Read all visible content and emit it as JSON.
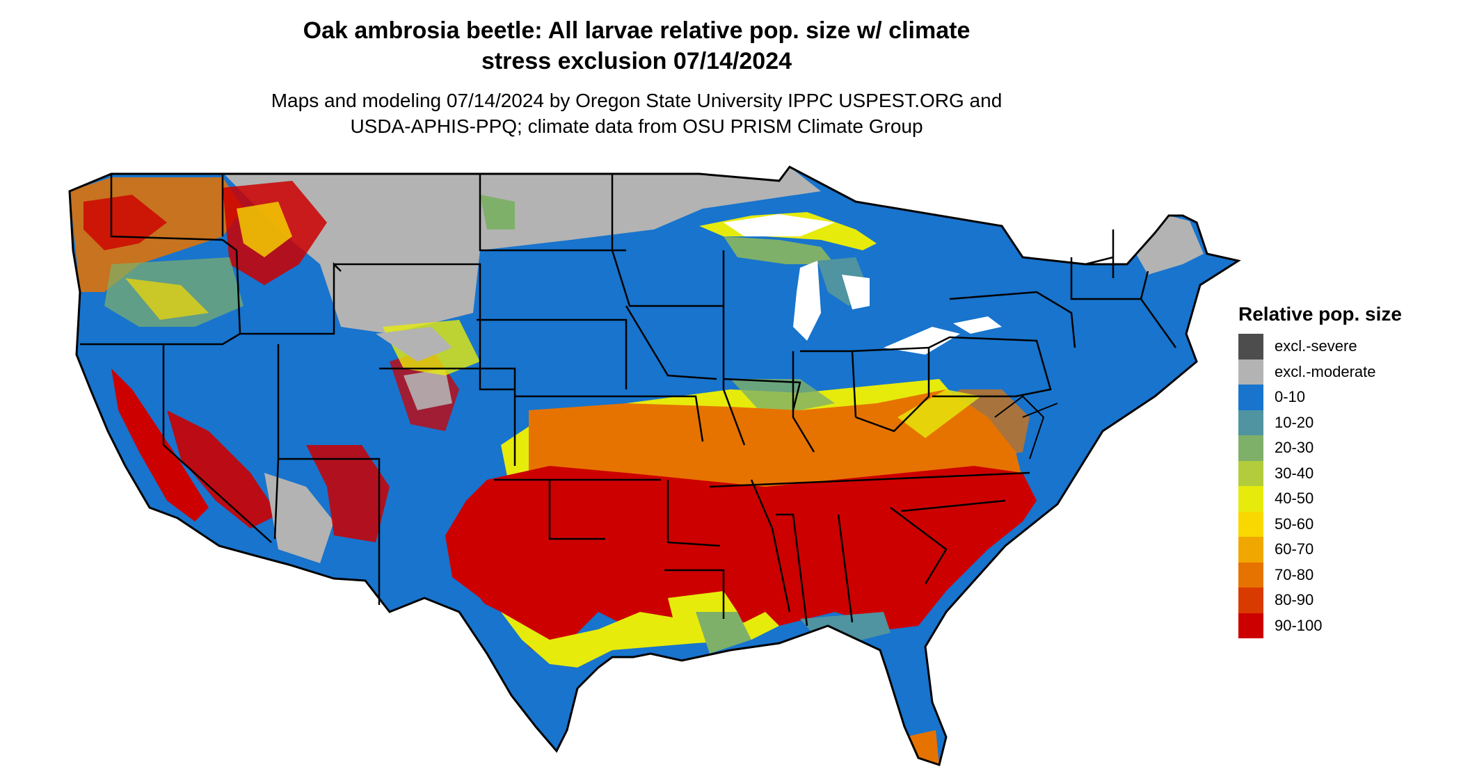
{
  "title": {
    "line1": "Oak ambrosia beetle: All larvae relative pop. size w/ climate",
    "line2": "stress exclusion 07/14/2024"
  },
  "subtitle": {
    "line1": "Maps and modeling 07/14/2024 by Oregon State University IPPC USPEST.ORG and",
    "line2": "USDA-APHIS-PPQ; climate data from OSU PRISM Climate Group"
  },
  "legend": {
    "title": "Relative pop. size",
    "items": [
      {
        "label": "excl.-severe",
        "color": "#4d4d4d"
      },
      {
        "label": "excl.-moderate",
        "color": "#b3b3b3"
      },
      {
        "label": "0-10",
        "color": "#1874cd"
      },
      {
        "label": "10-20",
        "color": "#4f94a0"
      },
      {
        "label": "20-30",
        "color": "#7fb069"
      },
      {
        "label": "30-40",
        "color": "#b2cc3c"
      },
      {
        "label": "40-50",
        "color": "#e6eb0c"
      },
      {
        "label": "50-60",
        "color": "#f8d800"
      },
      {
        "label": "60-70",
        "color": "#f0a800"
      },
      {
        "label": "70-80",
        "color": "#e67300"
      },
      {
        "label": "80-90",
        "color": "#d93a00"
      },
      {
        "label": "90-100",
        "color": "#cd0000"
      }
    ]
  }
}
